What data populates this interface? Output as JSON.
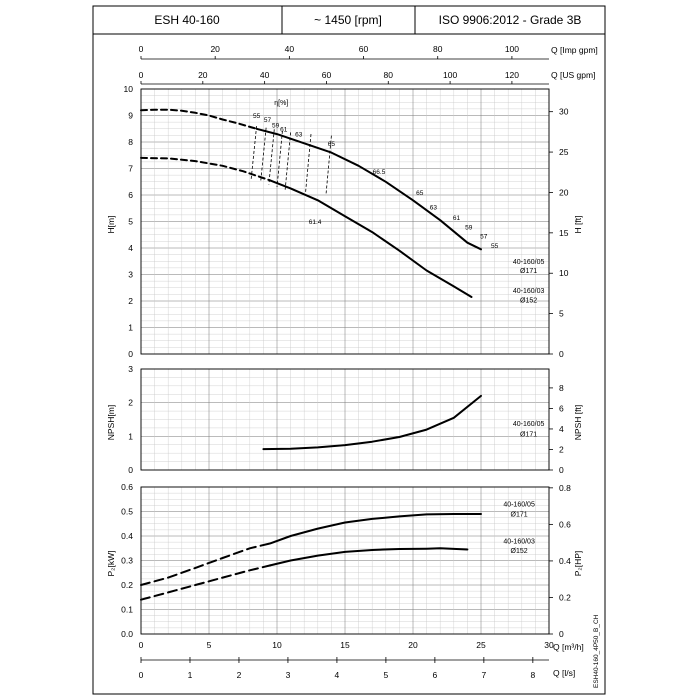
{
  "header": {
    "model": "ESH 40-160",
    "speed": "~ 1450 [rpm]",
    "standard": "ISO 9906:2012 - Grade 3B"
  },
  "side_code": "ESH40-160_4P50_B_CH",
  "chart_data": {
    "type": "line",
    "x_axes": {
      "q_imp_gpm": {
        "label": "Q [Imp gpm]",
        "range": [
          0,
          110
        ],
        "ticks": [
          0,
          20,
          40,
          60,
          80,
          100
        ]
      },
      "q_us_gpm": {
        "label": "Q [US gpm]",
        "range": [
          0,
          132
        ],
        "ticks": [
          0,
          20,
          40,
          60,
          80,
          100,
          120
        ]
      },
      "q_m3h": {
        "label": "Q [m³/h]",
        "range": [
          0,
          30
        ],
        "ticks": [
          0,
          5,
          10,
          15,
          20,
          25,
          30
        ]
      },
      "q_ls": {
        "label": "Q [l/s]",
        "range": [
          0,
          8.33
        ],
        "ticks": [
          0,
          1,
          2,
          3,
          4,
          5,
          6,
          7,
          8
        ]
      }
    },
    "panels": [
      {
        "id": "head",
        "ylabel_left": "H[m]",
        "ylim_left": [
          0,
          10
        ],
        "yticks_left": [
          0,
          1,
          2,
          3,
          4,
          5,
          6,
          7,
          8,
          9,
          10
        ],
        "ylabel_right": "H [ft]",
        "yticks_right": [
          0,
          5,
          10,
          15,
          20,
          25,
          30
        ],
        "efficiency_label": "η[%]",
        "series": [
          {
            "name": "40-160/05",
            "sub": "Ø171",
            "dashed": [
              [
                0,
                9.2
              ],
              [
                1,
                9.22
              ],
              [
                2,
                9.22
              ],
              [
                3,
                9.18
              ],
              [
                4,
                9.1
              ],
              [
                5,
                9.0
              ],
              [
                6,
                8.85
              ],
              [
                7,
                8.72
              ],
              [
                8.5,
                8.5
              ]
            ],
            "solid": [
              [
                8.5,
                8.5
              ],
              [
                10,
                8.3
              ],
              [
                12,
                7.95
              ],
              [
                14,
                7.6
              ],
              [
                16,
                7.1
              ],
              [
                18,
                6.5
              ],
              [
                20,
                5.8
              ],
              [
                22,
                5.05
              ],
              [
                24,
                4.2
              ],
              [
                25,
                3.95
              ]
            ]
          },
          {
            "name": "40-160/03",
            "sub": "Ø152",
            "dashed": [
              [
                0,
                7.4
              ],
              [
                2,
                7.38
              ],
              [
                4,
                7.28
              ],
              [
                6,
                7.1
              ],
              [
                7.5,
                6.9
              ],
              [
                9.5,
                6.55
              ]
            ],
            "solid": [
              [
                9.5,
                6.55
              ],
              [
                11,
                6.25
              ],
              [
                13,
                5.8
              ],
              [
                15,
                5.2
              ],
              [
                17,
                4.6
              ],
              [
                19,
                3.9
              ],
              [
                21,
                3.15
              ],
              [
                23,
                2.55
              ],
              [
                24.3,
                2.15
              ]
            ]
          }
        ],
        "efficiency_labels": [
          "55",
          "57",
          "59",
          "61",
          "63",
          "65",
          "66.5",
          "65",
          "63",
          "61",
          "59",
          "57",
          "55",
          "61.4"
        ]
      },
      {
        "id": "npsh",
        "ylabel_left": "NPSH[m]",
        "ylim_left": [
          0,
          3
        ],
        "yticks_left": [
          0,
          1,
          2,
          3
        ],
        "ylabel_right": "NPSH [ft]",
        "yticks_right": [
          0,
          2,
          4,
          6,
          8
        ],
        "series": [
          {
            "name": "40-160/05",
            "sub": "Ø171",
            "points": [
              [
                9,
                0.62
              ],
              [
                11,
                0.63
              ],
              [
                13,
                0.67
              ],
              [
                15,
                0.74
              ],
              [
                17,
                0.84
              ],
              [
                19,
                0.98
              ],
              [
                21,
                1.2
              ],
              [
                23,
                1.55
              ],
              [
                25,
                2.2
              ]
            ]
          }
        ]
      },
      {
        "id": "power",
        "ylabel_left": "P₂[kW]",
        "ylim_left": [
          0,
          0.6
        ],
        "yticks_left": [
          "0.0",
          "0.1",
          "0.2",
          "0.3",
          "0.4",
          "0.5",
          "0.6"
        ],
        "ylabel_right": "P₂[HP]",
        "yticks_right": [
          "0",
          "0.2",
          "0.4",
          "0.6",
          "0.8"
        ],
        "series": [
          {
            "name": "40-160/05",
            "sub": "Ø171",
            "dashed": [
              [
                0,
                0.2
              ],
              [
                2,
                0.23
              ],
              [
                4,
                0.27
              ],
              [
                6,
                0.31
              ],
              [
                8,
                0.35
              ],
              [
                9.5,
                0.37
              ]
            ],
            "solid": [
              [
                9.5,
                0.37
              ],
              [
                11,
                0.4
              ],
              [
                13,
                0.43
              ],
              [
                15,
                0.455
              ],
              [
                17,
                0.47
              ],
              [
                19,
                0.48
              ],
              [
                21,
                0.488
              ],
              [
                23,
                0.49
              ],
              [
                25,
                0.49
              ]
            ]
          },
          {
            "name": "40-160/03",
            "sub": "Ø152",
            "dashed": [
              [
                0,
                0.14
              ],
              [
                2,
                0.17
              ],
              [
                4,
                0.2
              ],
              [
                6,
                0.23
              ],
              [
                8,
                0.26
              ],
              [
                9.5,
                0.28
              ]
            ],
            "solid": [
              [
                9.5,
                0.28
              ],
              [
                11,
                0.3
              ],
              [
                13,
                0.32
              ],
              [
                15,
                0.335
              ],
              [
                17,
                0.343
              ],
              [
                19,
                0.347
              ],
              [
                21,
                0.348
              ],
              [
                22,
                0.35
              ],
              [
                24,
                0.345
              ]
            ]
          }
        ]
      }
    ]
  }
}
